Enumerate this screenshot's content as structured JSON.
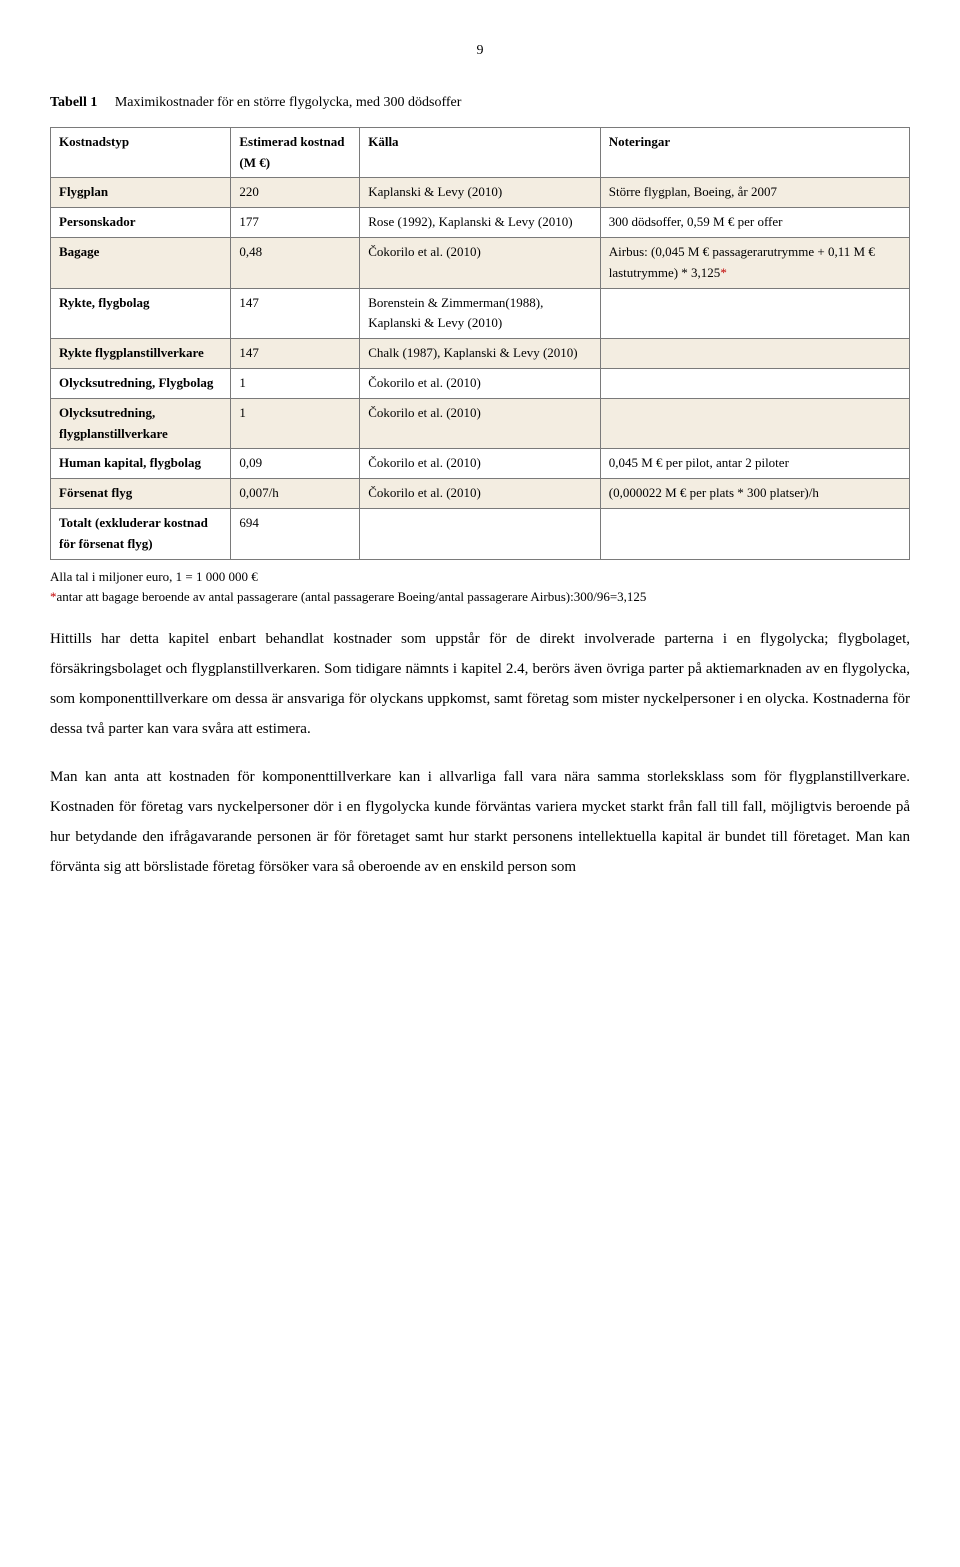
{
  "page_number": "9",
  "table_caption": {
    "label": "Tabell 1",
    "title": "Maximikostnader för en större flygolycka, med 300 dödsoffer"
  },
  "columns": [
    "Kostnadstyp",
    "Estimerad kostnad (M €)",
    "Källa",
    "Noteringar"
  ],
  "rows": [
    {
      "shaded": true,
      "c0": "Flygplan",
      "c1": "220",
      "c2": "Kaplanski & Levy (2010)",
      "c3": "Större flygplan, Boeing, år 2007"
    },
    {
      "shaded": false,
      "c0": "Personskador",
      "c1": "177",
      "c2": "Rose (1992), Kaplanski & Levy (2010)",
      "c3": "300 dödsoffer, 0,59 M € per offer"
    },
    {
      "shaded": true,
      "c0": "Bagage",
      "c1": "0,48",
      "c2": "Čokorilo et al. (2010)",
      "c3_pre": "Airbus: (0,045 M € passagerarutrymme + 0,11 M € lastutrymme) * 3,125",
      "c3_red": "*"
    },
    {
      "shaded": false,
      "c0": "Rykte, flygbolag",
      "c1": "147",
      "c2": "Borenstein & Zimmerman(1988), Kaplanski & Levy (2010)",
      "c3": ""
    },
    {
      "shaded": true,
      "c0": "Rykte flygplanstillverkare",
      "c1": "147",
      "c2": "Chalk (1987), Kaplanski & Levy (2010)",
      "c3": ""
    },
    {
      "shaded": false,
      "c0": "Olycksutredning, Flygbolag",
      "c1": "1",
      "c2": "Čokorilo et al. (2010)",
      "c3": ""
    },
    {
      "shaded": true,
      "c0": "Olycksutredning, flygplanstillverkare",
      "c1": "1",
      "c2": "Čokorilo et al. (2010)",
      "c3": ""
    },
    {
      "shaded": false,
      "c0": "Human kapital, flygbolag",
      "c1": "0,09",
      "c2": "Čokorilo et al. (2010)",
      "c3": "0,045 M € per pilot, antar 2 piloter"
    },
    {
      "shaded": true,
      "c0": "Försenat flyg",
      "c1": "0,007/h",
      "c2": "Čokorilo et al. (2010)",
      "c3": "(0,000022 M € per plats * 300 platser)/h"
    },
    {
      "shaded": false,
      "c0": "Totalt (exkluderar kostnad för försenat flyg)",
      "c1": "694",
      "c2": "",
      "c3": ""
    }
  ],
  "footnote1": "Alla tal i miljoner euro, 1 = 1 000 000 €",
  "footnote2_red": "*",
  "footnote2_rest": "antar att bagage beroende av antal passagerare (antal passagerare Boeing/antal passagerare Airbus):300/96=3,125",
  "para1": "Hittills har detta kapitel enbart behandlat kostnader som uppstår för de direkt involverade parterna i en flygolycka; flygbolaget, försäkringsbolaget och flygplanstillverkaren. Som tidigare nämnts i kapitel 2.4, berörs även övriga parter på aktiemarknaden av en flygolycka, som komponenttillverkare om dessa är ansvariga för olyckans uppkomst, samt företag som mister nyckelpersoner i en olycka. Kostnaderna för dessa två parter kan vara svåra att estimera.",
  "para2": "Man kan anta att kostnaden för komponenttillverkare kan i allvarliga fall vara nära samma storleksklass som för flygplanstillverkare. Kostnaden för företag vars nyckelpersoner dör i en flygolycka kunde förväntas variera mycket starkt från fall till fall, möjligtvis beroende på hur betydande den ifrågavarande personen är för företaget samt hur starkt personens intellektuella kapital är bundet till företaget. Man kan förvänta sig att börslistade företag försöker vara så oberoende av en enskild person som"
}
